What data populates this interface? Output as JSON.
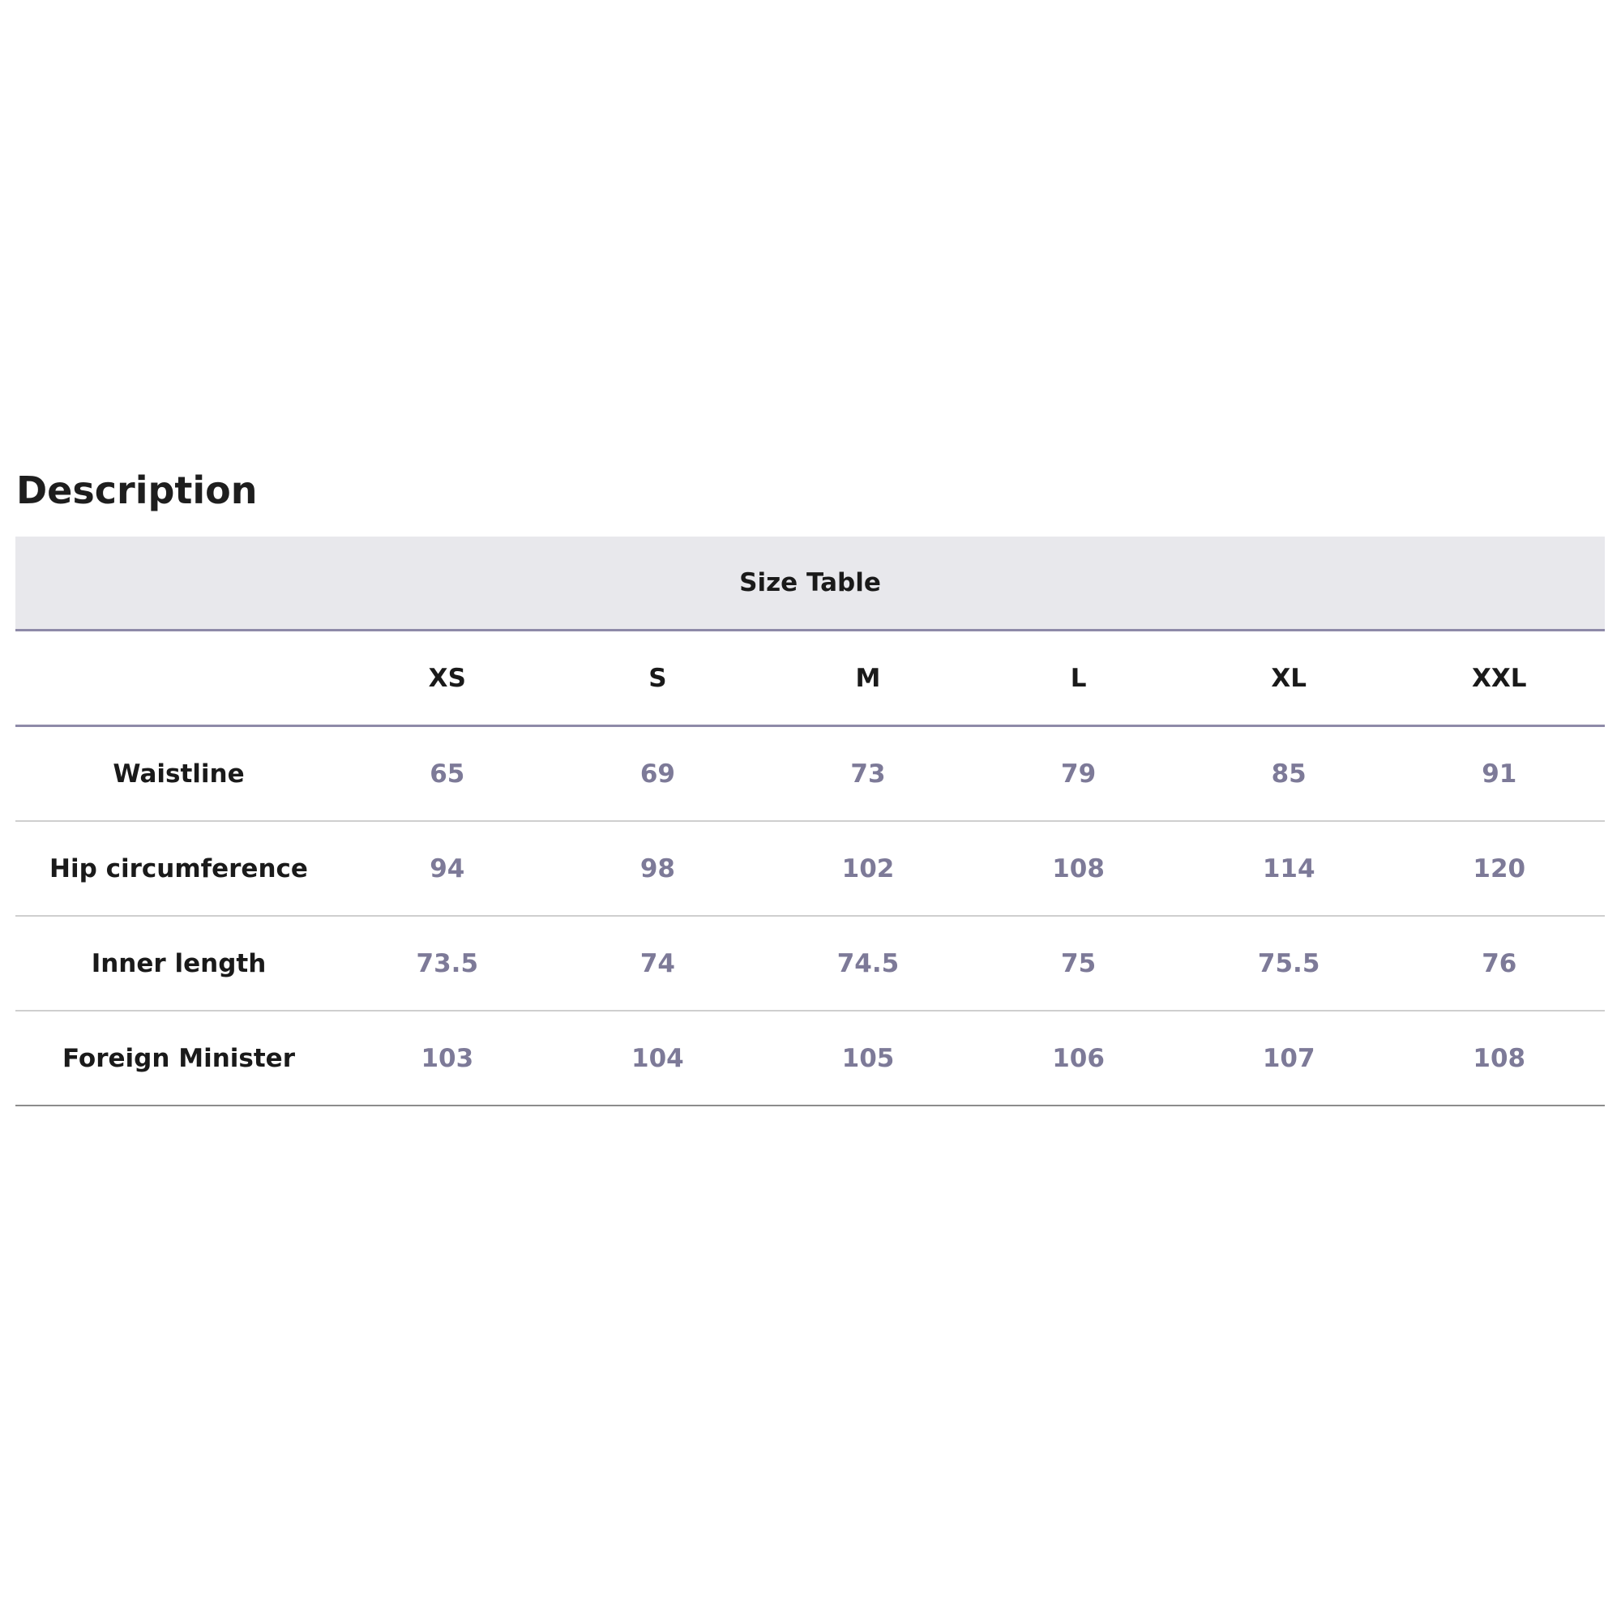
{
  "heading": "Description",
  "size_table": {
    "caption": "Size Table",
    "corner_label": "",
    "sizes": [
      "XS",
      "S",
      "M",
      "L",
      "XL",
      "XXL"
    ],
    "rows": [
      {
        "label": "Waistline",
        "values": [
          "65",
          "69",
          "73",
          "79",
          "85",
          "91"
        ]
      },
      {
        "label": "Hip circumference",
        "values": [
          "94",
          "98",
          "102",
          "108",
          "114",
          "120"
        ]
      },
      {
        "label": "Inner length",
        "values": [
          "73.5",
          "74",
          "74.5",
          "75",
          "75.5",
          "76"
        ]
      },
      {
        "label": "Foreign Minister",
        "values": [
          "103",
          "104",
          "105",
          "106",
          "107",
          "108"
        ]
      }
    ]
  },
  "colors": {
    "caption_background": "#e8e8ec",
    "accent_rule": "#8e8aa8",
    "value_text": "#7d7a98",
    "label_text": "#1a1a1a"
  }
}
